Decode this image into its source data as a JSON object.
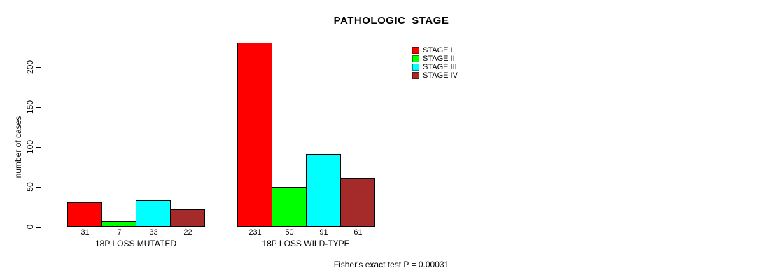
{
  "title": "PATHOLOGIC_STAGE",
  "footer": "Fisher's exact test P = 0.00031",
  "y_axis": {
    "label": "number of cases",
    "ticks": [
      "0",
      "50",
      "100",
      "150",
      "200"
    ]
  },
  "legend": {
    "items": [
      {
        "label": "STAGE I",
        "color": "#FF0000"
      },
      {
        "label": "STAGE II",
        "color": "#00FF00"
      },
      {
        "label": "STAGE III",
        "color": "#00FFFF"
      },
      {
        "label": "STAGE IV",
        "color": "#A52A2A"
      }
    ]
  },
  "chart_data": {
    "type": "bar",
    "title": "PATHOLOGIC_STAGE",
    "xlabel": "",
    "ylabel": "number of cases",
    "ylim": [
      0,
      235
    ],
    "yticks": [
      0,
      50,
      100,
      150,
      200
    ],
    "grid": false,
    "legend_position": "top-right",
    "categories": [
      "18P LOSS MUTATED",
      "18P LOSS WILD-TYPE"
    ],
    "series": [
      {
        "name": "STAGE I",
        "color": "#FF0000",
        "values": [
          31,
          231
        ]
      },
      {
        "name": "STAGE II",
        "color": "#00FF00",
        "values": [
          7,
          50
        ]
      },
      {
        "name": "STAGE III",
        "color": "#00FFFF",
        "values": [
          33,
          91
        ]
      },
      {
        "name": "STAGE IV",
        "color": "#A52A2A",
        "values": [
          22,
          61
        ]
      }
    ],
    "bar_value_labels": [
      [
        31,
        7,
        33,
        22
      ],
      [
        231,
        50,
        91,
        61
      ]
    ],
    "annotation": "Fisher's exact test P = 0.00031"
  }
}
